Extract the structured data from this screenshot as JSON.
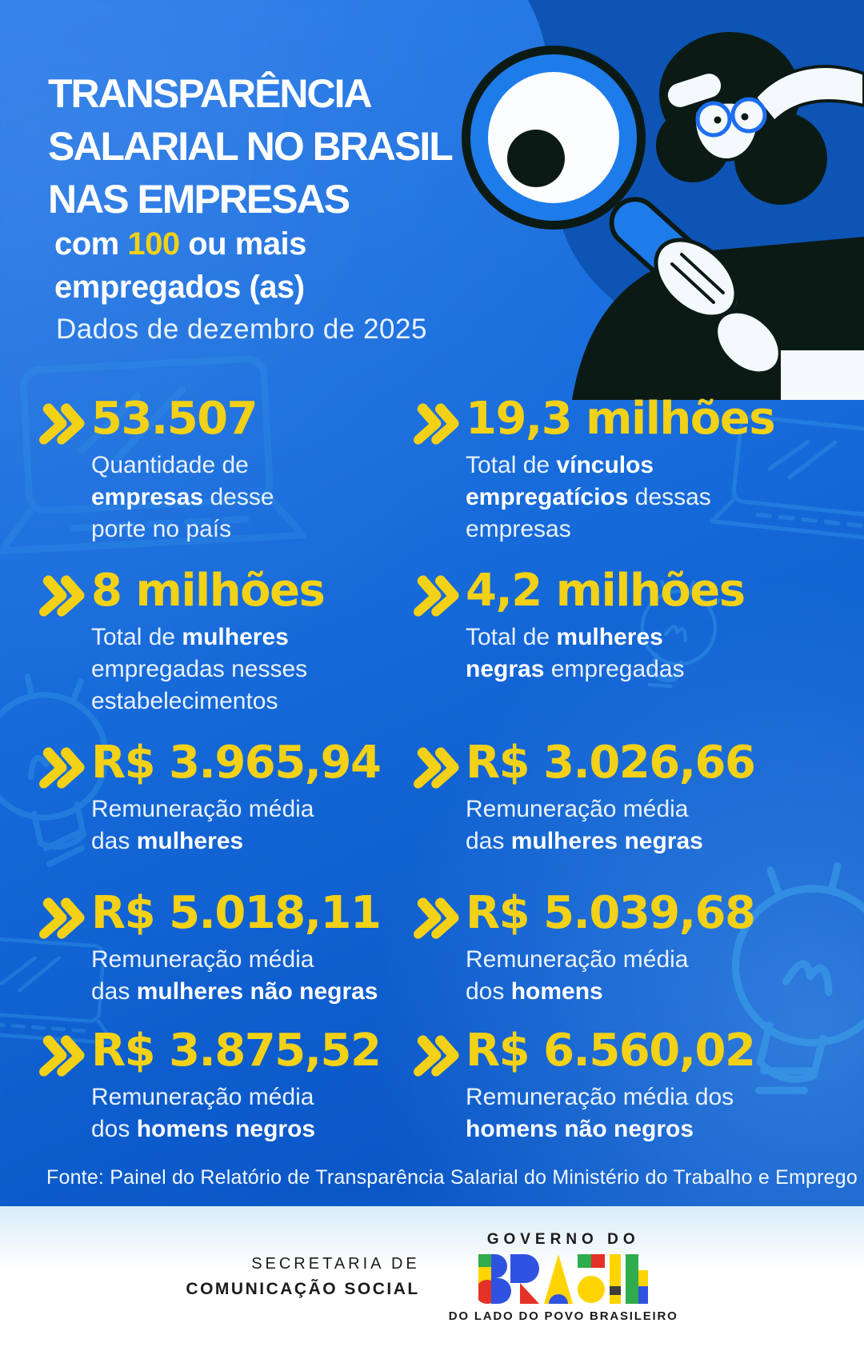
{
  "theme": {
    "background_blue": "#176bda",
    "accent_yellow": "#f2d117",
    "text_white": "#ffffff",
    "illustration_blue": "#1e7bea",
    "illustration_black": "#0c1a15"
  },
  "header": {
    "title_lines": [
      "TRANSPARÊNCIA",
      "SALARIAL NO BRASIL",
      "NAS EMPRESAS"
    ],
    "subtitle": {
      "pre": "com ",
      "highlight": "100",
      "post": " ou mais",
      "line2": "empregados (as)"
    },
    "date_note": "Dados de dezembro de 2025"
  },
  "stats": [
    {
      "value": "53.507",
      "desc": [
        {
          "t": "Quantidade de\n"
        },
        {
          "t": "empresas",
          "b": true
        },
        {
          "t": " desse\nporte no país"
        }
      ]
    },
    {
      "value": "19,3 milhões",
      "desc": [
        {
          "t": "Total de "
        },
        {
          "t": "vínculos",
          "b": true
        },
        {
          "t": "\n"
        },
        {
          "t": "empregatícios",
          "b": true
        },
        {
          "t": " dessas\nempresas"
        }
      ]
    },
    {
      "value": "8 milhões",
      "desc": [
        {
          "t": "Total de "
        },
        {
          "t": "mulheres",
          "b": true
        },
        {
          "t": "\nempregadas nesses\nestabelecimentos"
        }
      ]
    },
    {
      "value": "4,2 milhões",
      "desc": [
        {
          "t": "Total de "
        },
        {
          "t": "mulheres",
          "b": true
        },
        {
          "t": "\n"
        },
        {
          "t": "negras",
          "b": true
        },
        {
          "t": " empregadas"
        }
      ]
    },
    {
      "value": "R$ 3.965,94",
      "desc": [
        {
          "t": "Remuneração média\ndas "
        },
        {
          "t": "mulheres",
          "b": true
        }
      ]
    },
    {
      "value": "R$ 3.026,66",
      "desc": [
        {
          "t": "Remuneração média\ndas "
        },
        {
          "t": "mulheres negras",
          "b": true
        }
      ]
    },
    {
      "value": "R$ 5.018,11",
      "desc": [
        {
          "t": "Remuneração média\ndas "
        },
        {
          "t": "mulheres não negras",
          "b": true
        }
      ]
    },
    {
      "value": "R$ 5.039,68",
      "desc": [
        {
          "t": "Remuneração média\ndos "
        },
        {
          "t": "homens",
          "b": true
        }
      ]
    },
    {
      "value": "R$ 3.875,52",
      "desc": [
        {
          "t": "Remuneração média\ndos "
        },
        {
          "t": "homens negros",
          "b": true
        }
      ]
    },
    {
      "value": "R$ 6.560,02",
      "desc": [
        {
          "t": "Remuneração média dos\n"
        },
        {
          "t": "homens não negros",
          "b": true
        }
      ]
    }
  ],
  "source_note": "Fonte: Painel do Relatório de Transparência Salarial do Ministério do Trabalho e Emprego",
  "footer": {
    "secretariat_line1": "SECRETARIA DE",
    "secretariat_line2": "COMUNICAÇÃO SOCIAL",
    "gov_top": "GOVERNO DO",
    "gov_brand": "BRASIL",
    "gov_tagline": "DO LADO DO POVO BRASILEIRO"
  }
}
